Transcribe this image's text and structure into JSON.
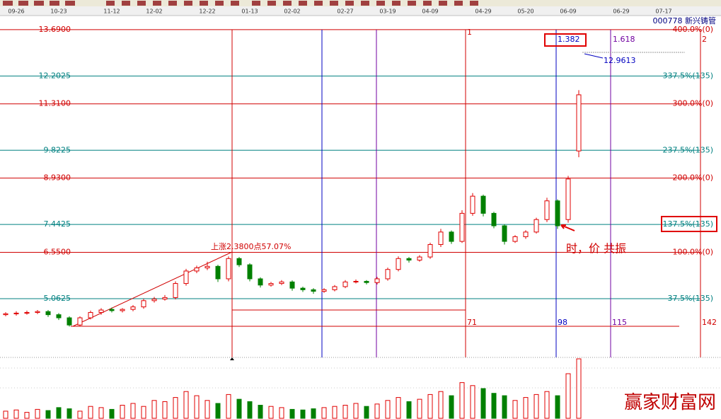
{
  "chart_data": {
    "type": "candlestick",
    "title": "000778 新兴铸管",
    "categories": [
      null,
      "09-26",
      null,
      null,
      null,
      "10-23",
      null,
      null,
      null,
      null,
      "11-12",
      null,
      null,
      null,
      "12-02",
      null,
      null,
      null,
      null,
      "12-22",
      null,
      null,
      null,
      "01-13",
      null,
      null,
      null,
      "02-02",
      null,
      null,
      null,
      null,
      "02-27",
      null,
      null,
      null,
      "03-19",
      null,
      null,
      null,
      "04-09",
      null,
      null,
      null,
      null,
      "04-29",
      null,
      null,
      null,
      "05-20",
      null,
      null,
      null,
      "06-09",
      null,
      null,
      null,
      null,
      "06-29",
      null,
      null,
      null,
      "07-17",
      null,
      null
    ],
    "open": [
      4.55,
      4.58,
      4.6,
      4.62,
      4.65,
      4.55,
      4.45,
      4.22,
      4.45,
      4.62,
      4.72,
      4.68,
      4.72,
      4.8,
      5.0,
      5.05,
      5.1,
      5.55,
      5.95,
      6.05,
      6.1,
      5.7,
      6.35,
      6.15,
      5.7,
      5.5,
      5.55,
      5.6,
      5.4,
      5.35,
      5.3,
      5.35,
      5.45,
      5.6,
      5.62,
      5.58,
      5.7,
      6.0,
      6.35,
      6.3,
      6.4,
      6.8,
      7.2,
      6.9,
      7.8,
      8.35,
      7.8,
      7.4,
      6.9,
      7.05,
      7.2,
      7.6,
      8.2,
      7.6,
      9.8,
      null,
      null,
      null,
      null,
      null,
      null,
      null,
      null,
      null,
      null
    ],
    "high": [
      4.63,
      4.66,
      4.68,
      4.7,
      4.7,
      4.6,
      4.5,
      4.5,
      4.68,
      4.76,
      4.78,
      4.76,
      4.86,
      5.06,
      5.12,
      5.18,
      5.62,
      6.02,
      6.12,
      6.25,
      6.15,
      6.42,
      6.4,
      6.2,
      5.75,
      5.6,
      5.66,
      5.65,
      5.45,
      5.4,
      5.4,
      5.5,
      5.66,
      5.68,
      5.66,
      5.76,
      6.06,
      6.42,
      6.4,
      6.46,
      6.86,
      7.3,
      7.25,
      7.9,
      8.45,
      8.4,
      7.85,
      7.45,
      7.1,
      7.26,
      7.66,
      8.3,
      8.25,
      9.0,
      11.75,
      null,
      null,
      null,
      null,
      null,
      null,
      null,
      null,
      null,
      null
    ],
    "low": [
      4.5,
      4.52,
      4.55,
      4.57,
      4.48,
      4.38,
      4.17,
      4.17,
      4.4,
      4.55,
      4.62,
      4.62,
      4.66,
      4.74,
      4.94,
      5.0,
      5.04,
      5.48,
      5.88,
      5.98,
      5.6,
      5.62,
      6.08,
      5.62,
      5.42,
      5.45,
      5.5,
      5.32,
      5.28,
      5.22,
      5.25,
      5.3,
      5.4,
      5.55,
      5.52,
      5.52,
      5.64,
      5.94,
      6.22,
      6.25,
      6.34,
      6.72,
      6.82,
      6.85,
      7.72,
      7.7,
      7.32,
      6.8,
      6.85,
      6.98,
      7.15,
      7.52,
      7.3,
      7.5,
      9.6,
      null,
      null,
      null,
      null,
      null,
      null,
      null,
      null,
      null,
      null
    ],
    "close": [
      4.58,
      4.6,
      4.62,
      4.65,
      4.55,
      4.45,
      4.22,
      4.45,
      4.62,
      4.7,
      4.68,
      4.72,
      4.8,
      5.0,
      5.05,
      5.1,
      5.55,
      5.95,
      6.05,
      6.1,
      5.7,
      6.35,
      6.15,
      5.7,
      5.5,
      5.55,
      5.6,
      5.4,
      5.35,
      5.3,
      5.35,
      5.45,
      5.6,
      5.62,
      5.58,
      5.7,
      6.0,
      6.35,
      6.3,
      6.4,
      6.8,
      7.2,
      6.9,
      7.8,
      8.35,
      7.8,
      7.4,
      6.9,
      7.05,
      7.2,
      7.6,
      8.2,
      7.4,
      8.9,
      11.6,
      null,
      null,
      null,
      null,
      null,
      null,
      null,
      null,
      null,
      null
    ],
    "volume": [
      12,
      14,
      10,
      15,
      13,
      18,
      16,
      12,
      20,
      18,
      15,
      22,
      25,
      20,
      30,
      28,
      35,
      45,
      38,
      30,
      25,
      40,
      32,
      28,
      22,
      20,
      18,
      15,
      14,
      16,
      18,
      20,
      22,
      25,
      20,
      24,
      30,
      35,
      28,
      32,
      40,
      45,
      38,
      60,
      55,
      50,
      42,
      38,
      30,
      35,
      40,
      45,
      38,
      75,
      100,
      null,
      null,
      null,
      null,
      null,
      null,
      null,
      null,
      null,
      null
    ],
    "up_color": "#e00000",
    "down_color": "#008000",
    "ylim": [
      3.18,
      14.14
    ],
    "yticks": [
      {
        "value": 13.69,
        "label": "13.6900"
      },
      {
        "value": 12.2025,
        "label": "12.2025"
      },
      {
        "value": 11.31,
        "label": "11.3100"
      },
      {
        "value": 9.8225,
        "label": "9.8225"
      },
      {
        "value": 8.93,
        "label": "8.9300"
      },
      {
        "value": 7.4425,
        "label": "7.4425"
      },
      {
        "value": 6.55,
        "label": "6.5500"
      },
      {
        "value": 5.0625,
        "label": "5.0625"
      }
    ],
    "right_labels": [
      "400.0%(0)",
      "337.5%(135)",
      "300.0%(0)",
      "237.5%(135)",
      "200.0%(0)",
      "137.5%(135)",
      "100.0%(0)",
      "37.5%(135)"
    ],
    "grid_colors": [
      "#d00000",
      "#008080"
    ],
    "volume_ylim": [
      0,
      100
    ],
    "annotations": {
      "rise": "上涨2.3800点57.07%",
      "fib_1382": "1.382",
      "fib_1618": "1.618",
      "target": "12.9613",
      "count_1": "1",
      "count_2": "2",
      "count_71": "71",
      "count_98": "98",
      "count_115": "115",
      "count_142": "142",
      "resonance": "时，价 共振",
      "watermark": "赢家财富网"
    }
  }
}
